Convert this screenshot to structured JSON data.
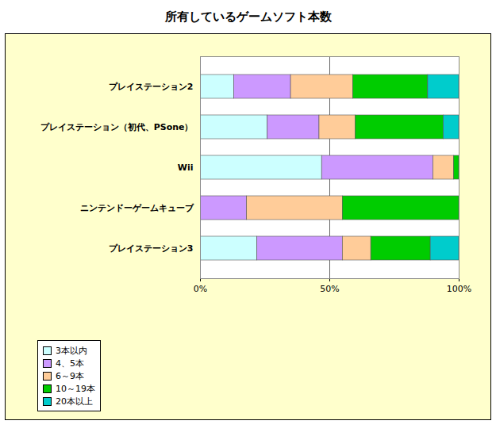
{
  "chart_data": {
    "type": "bar",
    "title": "所有しているゲームソフト本数",
    "orientation": "horizontal",
    "stacked": true,
    "categories": [
      "プレイステーション2",
      "プレイステーション（初代、PSone）",
      "Wii",
      "ニンテンドーゲームキューブ",
      "プレイステーション3"
    ],
    "series": [
      {
        "name": "3本以内",
        "color": "#CCFFFF",
        "values": [
          13,
          26,
          47,
          0,
          22
        ]
      },
      {
        "name": "4、5本",
        "color": "#CC99FF",
        "values": [
          22,
          20,
          43,
          18,
          33
        ]
      },
      {
        "name": "6～9本",
        "color": "#FFCC99",
        "values": [
          24,
          14,
          8,
          37,
          11
        ]
      },
      {
        "name": "10～19本",
        "color": "#00CC00",
        "values": [
          29,
          34,
          2,
          45,
          23
        ]
      },
      {
        "name": "20本以上",
        "color": "#00CCCC",
        "values": [
          12,
          6,
          0,
          0,
          11
        ]
      }
    ],
    "xlim": [
      0,
      100
    ],
    "xticks": [
      {
        "value": 0,
        "label": "0%"
      },
      {
        "value": 50,
        "label": "50%"
      },
      {
        "value": 100,
        "label": "100%"
      }
    ],
    "grid": true,
    "legend": "bottom-left"
  }
}
